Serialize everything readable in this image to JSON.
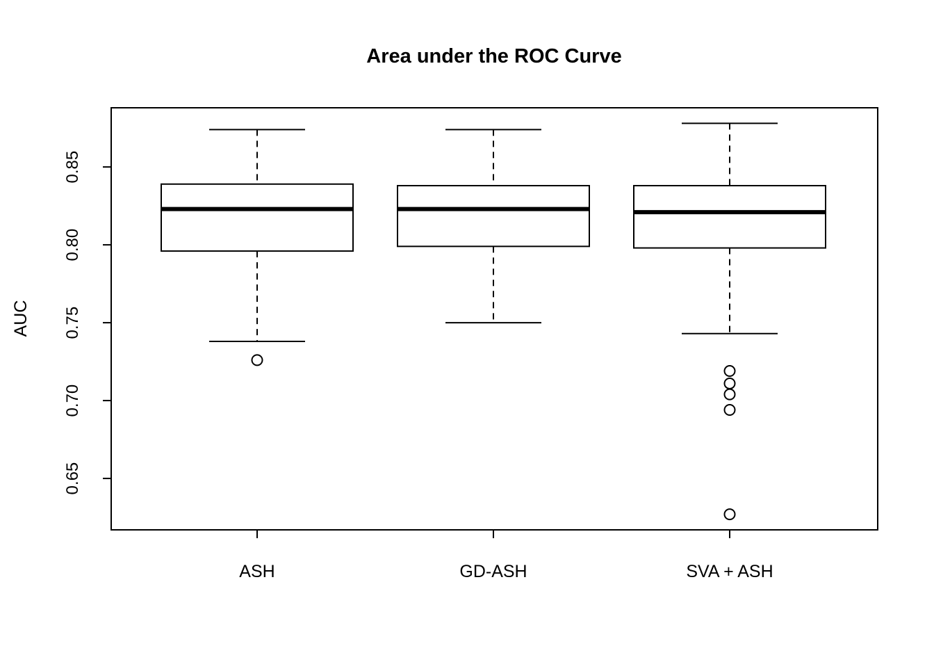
{
  "page": {
    "background": "#ffffff"
  },
  "chart_data": {
    "type": "boxplot",
    "title": "Area under the ROC Curve",
    "xlabel": "",
    "ylabel": "AUC",
    "categories": [
      "ASH",
      "GD-ASH",
      "SVA + ASH"
    ],
    "y_ticks": [
      0.65,
      0.7,
      0.75,
      0.8,
      0.85
    ],
    "y_tick_labels": [
      "0.65",
      "0.70",
      "0.75",
      "0.80",
      "0.85"
    ],
    "ylim": [
      0.617,
      0.888
    ],
    "grid": false,
    "legend": "none",
    "series": [
      {
        "name": "ASH",
        "whisker_low": 0.738,
        "q1": 0.796,
        "median": 0.823,
        "q3": 0.839,
        "whisker_high": 0.874,
        "outliers": [
          0.726
        ]
      },
      {
        "name": "GD-ASH",
        "whisker_low": 0.75,
        "q1": 0.799,
        "median": 0.823,
        "q3": 0.838,
        "whisker_high": 0.874,
        "outliers": []
      },
      {
        "name": "SVA + ASH",
        "whisker_low": 0.743,
        "q1": 0.798,
        "median": 0.821,
        "q3": 0.838,
        "whisker_high": 0.878,
        "outliers": [
          0.719,
          0.711,
          0.704,
          0.694,
          0.627
        ]
      }
    ],
    "colors": {
      "stroke": "#000000",
      "fill": "#ffffff",
      "background": "#ffffff"
    }
  }
}
